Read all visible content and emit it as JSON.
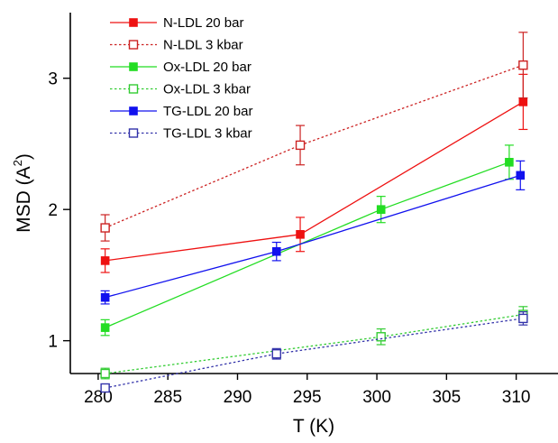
{
  "chart_data": {
    "type": "scatter",
    "xlabel": "T (K)",
    "ylabel": "MSD (Å²)",
    "ylabel_base": "MSD (A",
    "ylabel_sup": "2",
    "ylabel_end": ")",
    "xlim": [
      278,
      313
    ],
    "ylim": [
      0.75,
      3.5
    ],
    "xticks": [
      280,
      285,
      290,
      295,
      300,
      305,
      310
    ],
    "yticks": [
      1,
      2,
      3
    ],
    "legend_position": "top-left",
    "series": [
      {
        "name": "N-LDL 20 bar",
        "color": "#ee1111",
        "marker": "filled-square",
        "line": "solid",
        "points": [
          {
            "x": 280.5,
            "y": 1.61,
            "err": 0.09
          },
          {
            "x": 294.5,
            "y": 1.81,
            "err": 0.13
          },
          {
            "x": 310.5,
            "y": 2.82,
            "err": 0.21
          }
        ]
      },
      {
        "name": "N-LDL 3 kbar",
        "color": "#cc2222",
        "marker": "open-square",
        "line": "dotted",
        "points": [
          {
            "x": 280.5,
            "y": 1.86,
            "err": 0.1
          },
          {
            "x": 294.5,
            "y": 2.49,
            "err": 0.15
          },
          {
            "x": 310.5,
            "y": 3.1,
            "err": 0.25
          }
        ]
      },
      {
        "name": "Ox-LDL 20 bar",
        "color": "#22dd22",
        "marker": "filled-square",
        "line": "solid",
        "points": [
          {
            "x": 280.5,
            "y": 1.1,
            "err": 0.06
          },
          {
            "x": 300.3,
            "y": 2.0,
            "err": 0.1
          },
          {
            "x": 309.5,
            "y": 2.36,
            "err": 0.13
          }
        ]
      },
      {
        "name": "Ox-LDL 3 kbar",
        "color": "#33cc33",
        "marker": "open-square",
        "line": "dotted",
        "points": [
          {
            "x": 280.5,
            "y": 0.75,
            "err": 0.04
          },
          {
            "x": 300.3,
            "y": 1.03,
            "err": 0.06
          },
          {
            "x": 310.5,
            "y": 1.2,
            "err": 0.06
          }
        ]
      },
      {
        "name": "TG-LDL 20 bar",
        "color": "#1111ee",
        "marker": "filled-square",
        "line": "solid",
        "points": [
          {
            "x": 280.5,
            "y": 1.33,
            "err": 0.05
          },
          {
            "x": 292.8,
            "y": 1.68,
            "err": 0.07
          },
          {
            "x": 310.3,
            "y": 2.26,
            "err": 0.11
          }
        ]
      },
      {
        "name": "TG-LDL 3 kbar",
        "color": "#3333aa",
        "marker": "open-square",
        "line": "dotted",
        "points": [
          {
            "x": 280.5,
            "y": 0.64,
            "err": 0.03
          },
          {
            "x": 292.8,
            "y": 0.9,
            "err": 0.04
          },
          {
            "x": 310.5,
            "y": 1.17,
            "err": 0.05
          }
        ]
      }
    ]
  }
}
